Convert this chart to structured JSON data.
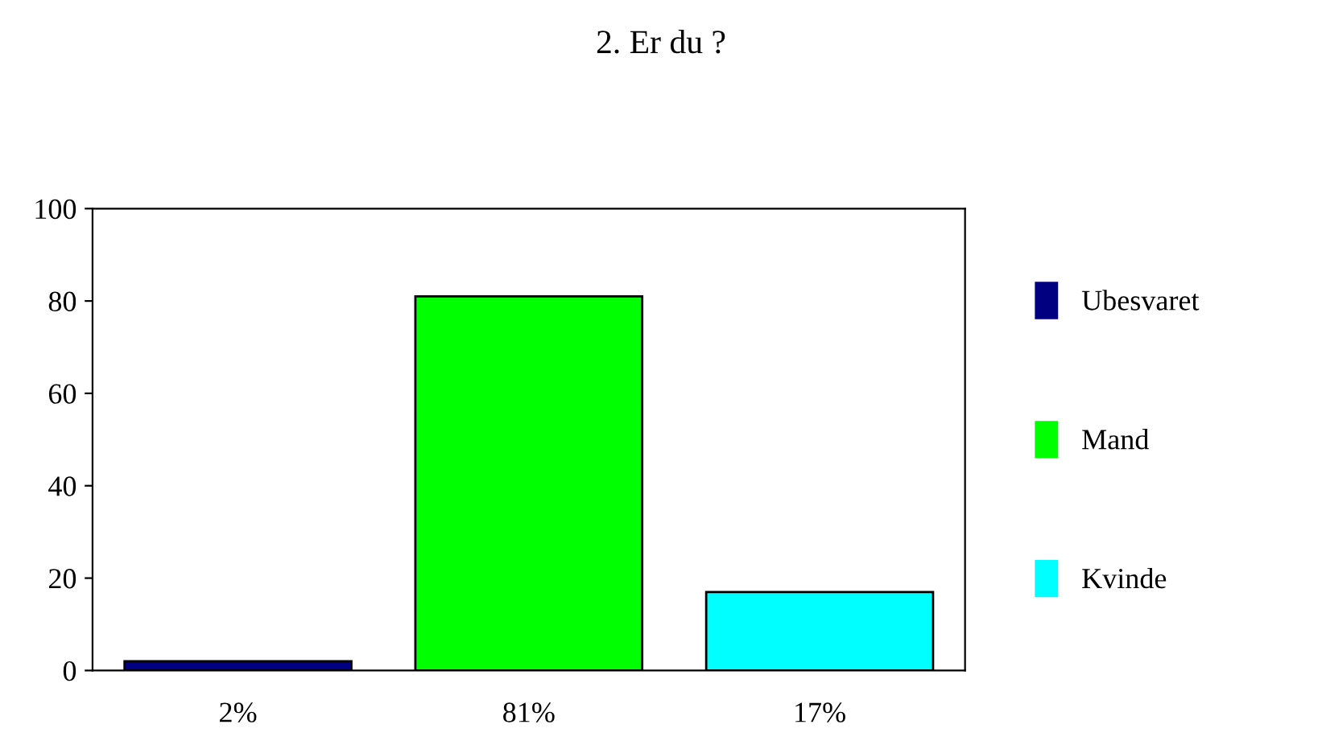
{
  "chart_data": {
    "type": "bar",
    "title": "2. Er du ?",
    "categories": [
      null,
      null,
      null
    ],
    "series": [
      {
        "name": "Ubesvaret",
        "color": "#000080",
        "values": [
          2,
          null,
          null
        ],
        "value_labels": [
          "2%",
          null,
          null
        ]
      },
      {
        "name": "Mand",
        "color": "#00ff00",
        "values": [
          null,
          81,
          null
        ],
        "value_labels": [
          null,
          "81%",
          null
        ]
      },
      {
        "name": "Kvinde",
        "color": "#00ffff",
        "values": [
          null,
          null,
          17
        ],
        "value_labels": [
          null,
          null,
          "17%"
        ]
      }
    ],
    "ylim": [
      0,
      100
    ],
    "yticks": [
      0,
      20,
      40,
      60,
      80,
      100
    ],
    "grid": false,
    "legend": "right"
  }
}
